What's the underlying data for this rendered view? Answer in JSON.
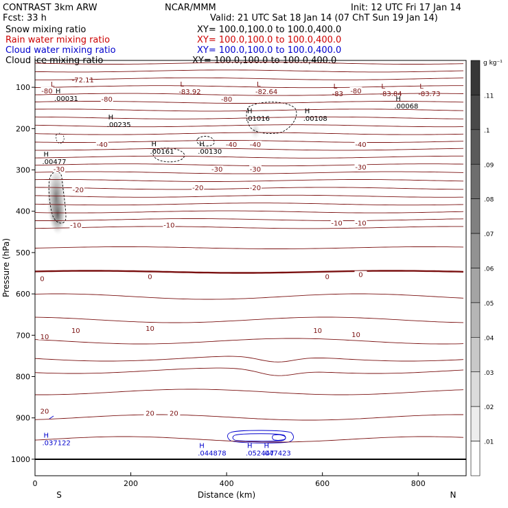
{
  "header": {
    "model": "CONTRAST   3km ARW",
    "forecast": "Fcst:    33 h",
    "center": "NCAR/MMM",
    "init": "Init: 12 UTC Fri 17 Jan 14",
    "valid": "Valid: 21 UTC Sat 18 Jan 14 (07 ChT Sun 19 Jan 14)",
    "fields": [
      {
        "name": "Snow mixing ratio",
        "xy": "XY=  100.0,100.0 to 100.0,400.0",
        "color": "#000000"
      },
      {
        "name": "Rain water mixing ratio",
        "xy": "XY=  100.0,100.0 to 100.0,400.0",
        "color": "#cc0000"
      },
      {
        "name": "Cloud water mixing ratio",
        "xy": "XY=  100.0,100.0 to 100.0,400.0",
        "color": "#0000cc"
      },
      {
        "name": "Cloud ice mixing ratio",
        "xy": "XY=  100.0,100.0 to 100.0,400.0",
        "color": "#000000"
      }
    ]
  },
  "chart_data": {
    "type": "contour",
    "xlabel": "Distance (km)",
    "ylabel": "Pressure (hPa)",
    "xlim": [
      0,
      900
    ],
    "ylim": [
      1040,
      35
    ],
    "xticks": [
      0,
      200,
      400,
      600,
      800
    ],
    "yticks": [
      100,
      200,
      300,
      400,
      500,
      600,
      700,
      800,
      900,
      1000
    ],
    "end_labels": {
      "left": "S",
      "right": "N"
    },
    "colorbar": {
      "units": "g kg⁻¹",
      "ticks": [
        ".01",
        ".02",
        ".03",
        ".04",
        ".05",
        ".06",
        ".07",
        ".08",
        ".09",
        ".1",
        ".11"
      ],
      "levels": 12
    },
    "temperature_labels": [
      {
        "x": 25,
        "p": 111,
        "t": "-80"
      },
      {
        "x": 100,
        "p": 85,
        "t": "-72.11"
      },
      {
        "x": 150,
        "p": 131,
        "t": "-80"
      },
      {
        "x": 400,
        "p": 131,
        "t": "-80"
      },
      {
        "x": 670,
        "p": 111,
        "t": "-80"
      },
      {
        "x": 140,
        "p": 241,
        "t": "-40"
      },
      {
        "x": 410,
        "p": 241,
        "t": "-40"
      },
      {
        "x": 460,
        "p": 241,
        "t": "-40"
      },
      {
        "x": 680,
        "p": 241,
        "t": "-40"
      },
      {
        "x": 50,
        "p": 301,
        "t": "-30"
      },
      {
        "x": 380,
        "p": 301,
        "t": "-30"
      },
      {
        "x": 460,
        "p": 301,
        "t": "-30"
      },
      {
        "x": 680,
        "p": 296,
        "t": "-30"
      },
      {
        "x": 90,
        "p": 351,
        "t": "-20"
      },
      {
        "x": 340,
        "p": 346,
        "t": "-20"
      },
      {
        "x": 460,
        "p": 346,
        "t": "-20"
      },
      {
        "x": 85,
        "p": 436,
        "t": "-10"
      },
      {
        "x": 280,
        "p": 436,
        "t": "-10"
      },
      {
        "x": 630,
        "p": 431,
        "t": "-10"
      },
      {
        "x": 680,
        "p": 431,
        "t": "-10"
      },
      {
        "x": 15,
        "p": 566,
        "t": "0"
      },
      {
        "x": 240,
        "p": 561,
        "t": "0"
      },
      {
        "x": 610,
        "p": 561,
        "t": "0"
      },
      {
        "x": 680,
        "p": 556,
        "t": "0"
      },
      {
        "x": 20,
        "p": 706,
        "t": "10"
      },
      {
        "x": 85,
        "p": 691,
        "t": "10"
      },
      {
        "x": 240,
        "p": 686,
        "t": "10"
      },
      {
        "x": 590,
        "p": 691,
        "t": "10"
      },
      {
        "x": 670,
        "p": 701,
        "t": "10"
      },
      {
        "x": 20,
        "p": 886,
        "t": "20"
      },
      {
        "x": 240,
        "p": 891,
        "t": "20"
      },
      {
        "x": 290,
        "p": 891,
        "t": "20"
      }
    ],
    "annotations": [
      {
        "x": 30,
        "p": 111,
        "kind": "L",
        "label": "",
        "color": "#7a1010"
      },
      {
        "x": 40,
        "p": 128,
        "kind": "H",
        "label": ".00031",
        "color": "#000000"
      },
      {
        "x": 300,
        "p": 111,
        "kind": "L",
        "label": "-83.92",
        "color": "#7a1010"
      },
      {
        "x": 460,
        "p": 111,
        "kind": "L",
        "label": "-82.64",
        "color": "#7a1010"
      },
      {
        "x": 620,
        "p": 116,
        "kind": "L",
        "label": "-83",
        "color": "#7a1010"
      },
      {
        "x": 720,
        "p": 116,
        "kind": "L",
        "label": "-83.84",
        "color": "#7a1010"
      },
      {
        "x": 800,
        "p": 116,
        "kind": "L",
        "label": "-83.73",
        "color": "#7a1010"
      },
      {
        "x": 750,
        "p": 146,
        "kind": "H",
        "label": ".00068",
        "color": "#000000"
      },
      {
        "x": 150,
        "p": 191,
        "kind": "H",
        "label": ".00235",
        "color": "#000000"
      },
      {
        "x": 440,
        "p": 176,
        "kind": "H",
        "label": ".01016",
        "color": "#000000"
      },
      {
        "x": 560,
        "p": 176,
        "kind": "H",
        "label": ".00108",
        "color": "#000000"
      },
      {
        "x": 240,
        "p": 256,
        "kind": "H",
        "label": ".00161",
        "color": "#000000"
      },
      {
        "x": 340,
        "p": 256,
        "kind": "H",
        "label": ".00130",
        "color": "#000000"
      },
      {
        "x": 15,
        "p": 281,
        "kind": "H",
        "label": ".00477",
        "color": "#000000"
      },
      {
        "x": 15,
        "p": 961,
        "kind": "H",
        "label": ".037122",
        "color": "#0000cc"
      },
      {
        "x": 340,
        "p": 986,
        "kind": "H",
        "label": ".044878",
        "color": "#0000cc"
      },
      {
        "x": 440,
        "p": 986,
        "kind": "H",
        "label": ".052447",
        "color": "#0000cc"
      },
      {
        "x": 475,
        "p": 986,
        "kind": "H",
        "label": ".047423",
        "color": "#0000cc"
      }
    ]
  }
}
